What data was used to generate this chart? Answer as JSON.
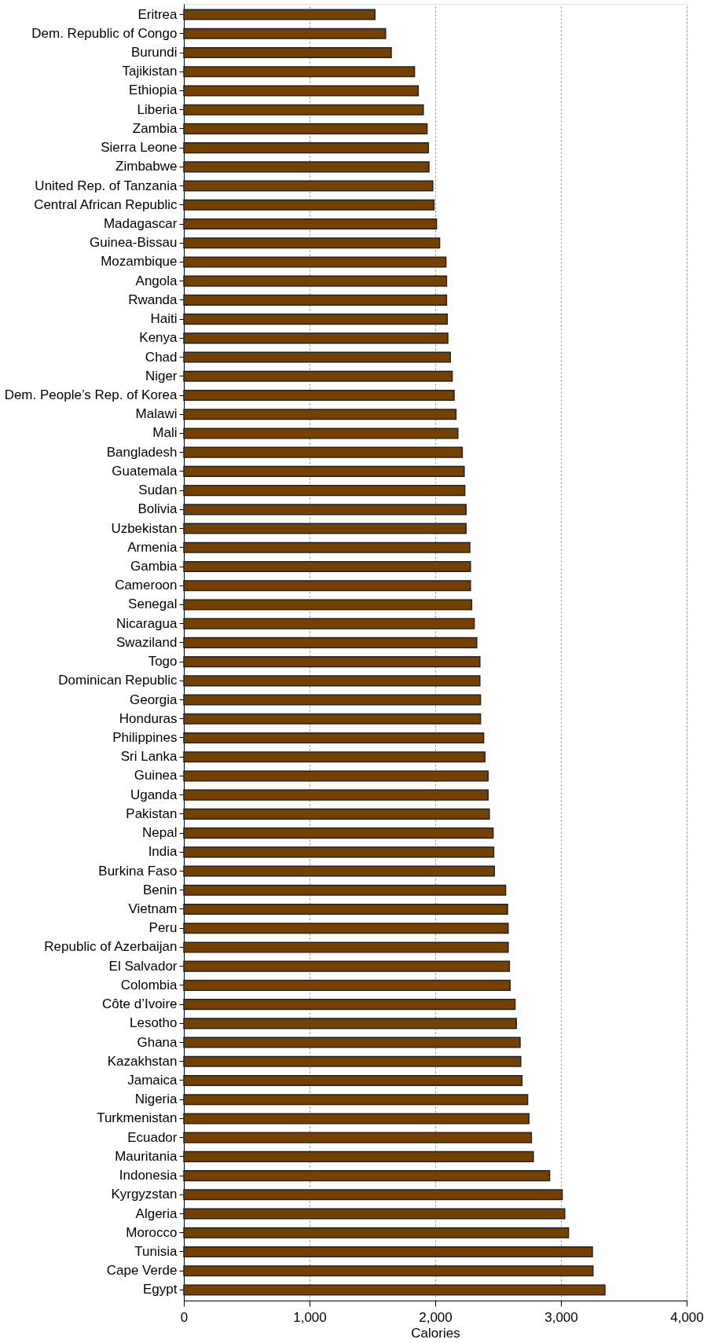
{
  "chart_data": {
    "type": "bar",
    "orientation": "horizontal",
    "xlabel": "Calories",
    "categories": [
      "Eritrea",
      "Dem. Republic of Congo",
      "Burundi",
      "Tajikistan",
      "Ethiopia",
      "Liberia",
      "Zambia",
      "Sierra Leone",
      "Zimbabwe",
      "United Rep. of Tanzania",
      "Central African Republic",
      "Madagascar",
      "Guinea-Bissau",
      "Mozambique",
      "Angola",
      "Rwanda",
      "Haiti",
      "Kenya",
      "Chad",
      "Niger",
      "Dem. People’s Rep. of Korea",
      "Malawi",
      "Mali",
      "Bangladesh",
      "Guatemala",
      "Sudan",
      "Bolivia",
      "Uzbekistan",
      "Armenia",
      "Gambia",
      "Cameroon",
      "Senegal",
      "Nicaragua",
      "Swaziland",
      "Togo",
      "Dominican Republic",
      "Georgia",
      "Honduras",
      "Philippines",
      "Sri Lanka",
      "Guinea",
      "Uganda",
      "Pakistan",
      "Nepal",
      "India",
      "Burkina Faso",
      "Benin",
      "Vietnam",
      "Peru",
      "Republic of Azerbaijan",
      "El Salvador",
      "Colombia",
      "Côte d’Ivoire",
      "Lesotho",
      "Ghana",
      "Kazakhstan",
      "Jamaica",
      "Nigeria",
      "Turkmenistan",
      "Ecuador",
      "Mauritania",
      "Indonesia",
      "Kyrgyzstan",
      "Algeria",
      "Morocco",
      "Tunisia",
      "Cape Verde",
      "Egypt"
    ],
    "values": [
      1520,
      1605,
      1650,
      1835,
      1865,
      1905,
      1935,
      1945,
      1950,
      1980,
      1990,
      2010,
      2035,
      2085,
      2090,
      2090,
      2095,
      2100,
      2120,
      2135,
      2150,
      2165,
      2180,
      2215,
      2230,
      2235,
      2245,
      2245,
      2275,
      2280,
      2280,
      2290,
      2310,
      2330,
      2355,
      2355,
      2360,
      2360,
      2385,
      2395,
      2420,
      2420,
      2430,
      2460,
      2465,
      2470,
      2560,
      2575,
      2580,
      2580,
      2590,
      2595,
      2635,
      2645,
      2675,
      2680,
      2690,
      2735,
      2745,
      2765,
      2780,
      2910,
      3010,
      3030,
      3060,
      3250,
      3255,
      3350
    ],
    "color": "#744100",
    "xlim": [
      0,
      4000
    ],
    "xticks": [
      0,
      {
        "value": 1000,
        "label": "1,000"
      },
      {
        "value": 2000,
        "label": "2,000"
      },
      {
        "value": 3000,
        "label": "3,000"
      },
      {
        "value": 4000,
        "label": "4,000"
      }
    ],
    "grid": "x"
  }
}
